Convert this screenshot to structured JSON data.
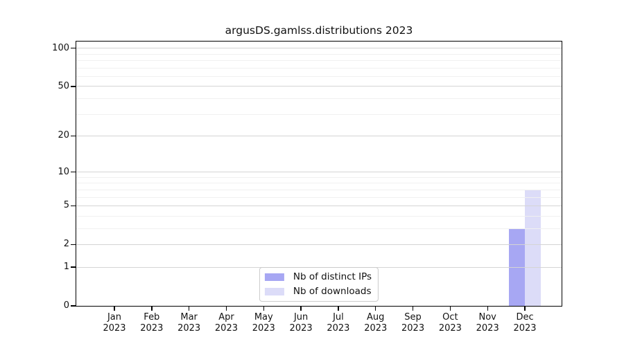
{
  "figure": {
    "background": "#ffffff"
  },
  "chart_data": {
    "type": "bar",
    "title": "argusDS.gamlss.distributions 2023",
    "x_tick_months": [
      "Jan",
      "Feb",
      "Mar",
      "Apr",
      "May",
      "Jun",
      "Jul",
      "Aug",
      "Sep",
      "Oct",
      "Nov",
      "Dec"
    ],
    "x_tick_year": "2023",
    "series": [
      {
        "name": "Nb of distinct IPs",
        "color": "#a7a7f3",
        "values": [
          0,
          0,
          0,
          0,
          0,
          0,
          0,
          0,
          0,
          0,
          0,
          3
        ]
      },
      {
        "name": "Nb of downloads",
        "color": "#dcdcf8",
        "values": [
          0,
          0,
          0,
          0,
          0,
          0,
          0,
          0,
          0,
          0,
          0,
          7
        ]
      }
    ],
    "y_scale": "log1p",
    "y_axis": {
      "major_ticks": [
        0,
        1,
        2,
        5,
        10,
        20,
        50,
        100
      ],
      "minor_gridlines": [
        3,
        4,
        6,
        7,
        8,
        9,
        30,
        40,
        60,
        70,
        80,
        90
      ],
      "max": 113
    },
    "grid": "both",
    "legend_position": "lower center",
    "colors": {
      "spine": "#000000",
      "grid_major": "#d4d4d4",
      "grid_minor": "#f0f0f0",
      "legend_border": "#cbcbcb"
    }
  }
}
